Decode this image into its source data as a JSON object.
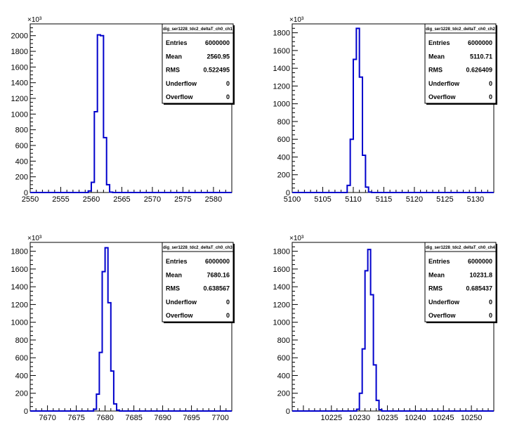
{
  "axis_multiplier": "×10³",
  "chart_data": [
    {
      "type": "histogram",
      "title": "",
      "stats": {
        "name": "dig_ser1228_tdc2_deltaT_ch0_ch1",
        "rows": [
          {
            "label": "Entries",
            "value": "6000000"
          },
          {
            "label": "Mean",
            "value": "2560.95"
          },
          {
            "label": "RMS",
            "value": "0.522495"
          },
          {
            "label": "Underflow",
            "value": "0"
          },
          {
            "label": "Overflow",
            "value": "0"
          }
        ]
      },
      "xlim": [
        2550,
        2583
      ],
      "ylim": [
        0,
        2150
      ],
      "xticks": [
        2550,
        2555,
        2560,
        2565,
        2570,
        2575,
        2580
      ],
      "yticks": [
        0,
        200,
        400,
        600,
        800,
        1000,
        1200,
        1400,
        1600,
        1800,
        2000
      ],
      "bin_width": 0.5,
      "bins": [
        {
          "x": 2559.5,
          "y": 20
        },
        {
          "x": 2560.0,
          "y": 130
        },
        {
          "x": 2560.5,
          "y": 1030
        },
        {
          "x": 2561.0,
          "y": 2010
        },
        {
          "x": 2561.5,
          "y": 2000
        },
        {
          "x": 2562.0,
          "y": 700
        },
        {
          "x": 2562.5,
          "y": 100
        },
        {
          "x": 2563.0,
          "y": 5
        }
      ]
    },
    {
      "type": "histogram",
      "title": "",
      "stats": {
        "name": "dig_ser1228_tdc2_deltaT_ch0_ch2",
        "rows": [
          {
            "label": "Entries",
            "value": "6000000"
          },
          {
            "label": "Mean",
            "value": "5110.71"
          },
          {
            "label": "RMS",
            "value": "0.626409"
          },
          {
            "label": "Underflow",
            "value": "0"
          },
          {
            "label": "Overflow",
            "value": "0"
          }
        ]
      },
      "xlim": [
        5100,
        5133
      ],
      "ylim": [
        0,
        1900
      ],
      "xticks": [
        5100,
        5105,
        5110,
        5115,
        5120,
        5125,
        5130
      ],
      "yticks": [
        0,
        200,
        400,
        600,
        800,
        1000,
        1200,
        1400,
        1600,
        1800
      ],
      "bin_width": 0.5,
      "bins": [
        {
          "x": 5109.0,
          "y": 80
        },
        {
          "x": 5109.5,
          "y": 600
        },
        {
          "x": 5110.0,
          "y": 1500
        },
        {
          "x": 5110.5,
          "y": 1850
        },
        {
          "x": 5111.0,
          "y": 1300
        },
        {
          "x": 5111.5,
          "y": 420
        },
        {
          "x": 5112.0,
          "y": 60
        },
        {
          "x": 5112.5,
          "y": 5
        }
      ]
    },
    {
      "type": "histogram",
      "title": "",
      "stats": {
        "name": "dig_ser1228_tdc2_deltaT_ch0_ch3",
        "rows": [
          {
            "label": "Entries",
            "value": "6000000"
          },
          {
            "label": "Mean",
            "value": "7680.16"
          },
          {
            "label": "RMS",
            "value": "0.638567"
          },
          {
            "label": "Underflow",
            "value": "0"
          },
          {
            "label": "Overflow",
            "value": "0"
          }
        ]
      },
      "xlim": [
        7667,
        7702
      ],
      "ylim": [
        0,
        1900
      ],
      "xticks": [
        7670,
        7675,
        7680,
        7685,
        7690,
        7695,
        7700
      ],
      "yticks": [
        0,
        200,
        400,
        600,
        800,
        1000,
        1200,
        1400,
        1600,
        1800
      ],
      "bin_width": 0.5,
      "bins": [
        {
          "x": 7678.0,
          "y": 20
        },
        {
          "x": 7678.5,
          "y": 190
        },
        {
          "x": 7679.0,
          "y": 660
        },
        {
          "x": 7679.5,
          "y": 1570
        },
        {
          "x": 7680.0,
          "y": 1840
        },
        {
          "x": 7680.5,
          "y": 1220
        },
        {
          "x": 7681.0,
          "y": 450
        },
        {
          "x": 7681.5,
          "y": 80
        },
        {
          "x": 7682.0,
          "y": 10
        }
      ]
    },
    {
      "type": "histogram",
      "title": "",
      "stats": {
        "name": "dig_ser1228_tdc2_deltaT_ch0_ch4",
        "rows": [
          {
            "label": "Entries",
            "value": "6000000"
          },
          {
            "label": "Mean",
            "value": "10231.8"
          },
          {
            "label": "RMS",
            "value": "0.685437"
          },
          {
            "label": "Underflow",
            "value": "0"
          },
          {
            "label": "Overflow",
            "value": "0"
          }
        ]
      },
      "xlim": [
        10218,
        10254
      ],
      "ylim": [
        0,
        1900
      ],
      "xticks": [
        10225,
        10230,
        10235,
        10240,
        10245,
        10250
      ],
      "yticks": [
        0,
        200,
        400,
        600,
        800,
        1000,
        1200,
        1400,
        1600,
        1800
      ],
      "bin_width": 0.5,
      "bins": [
        {
          "x": 10229.5,
          "y": 20
        },
        {
          "x": 10230.0,
          "y": 200
        },
        {
          "x": 10230.5,
          "y": 700
        },
        {
          "x": 10231.0,
          "y": 1580
        },
        {
          "x": 10231.5,
          "y": 1820
        },
        {
          "x": 10232.0,
          "y": 1310
        },
        {
          "x": 10232.5,
          "y": 520
        },
        {
          "x": 10233.0,
          "y": 120
        },
        {
          "x": 10233.5,
          "y": 15
        }
      ]
    }
  ]
}
